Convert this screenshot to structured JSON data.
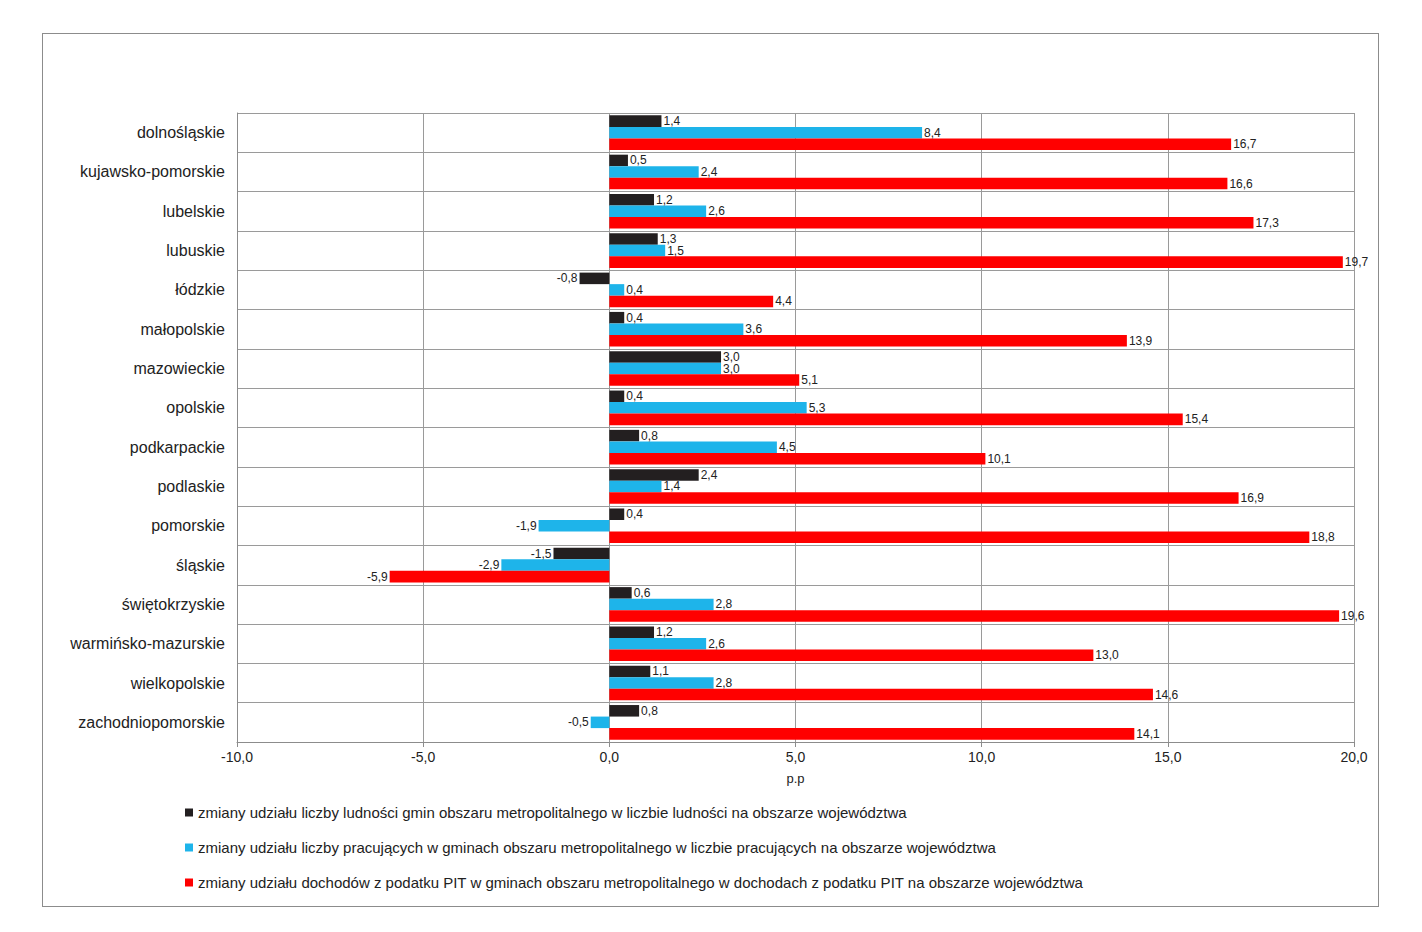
{
  "chart_data": {
    "type": "bar",
    "orientation": "horizontal",
    "x_label": "p.p",
    "categories": [
      "dolnośląskie",
      "kujawsko-pomorskie",
      "lubelskie",
      "lubuskie",
      "łódzkie",
      "małopolskie",
      "mazowieckie",
      "opolskie",
      "podkarpackie",
      "podlaskie",
      "pomorskie",
      "śląskie",
      "świętokrzyskie",
      "warmińsko-mazurskie",
      "wielkopolskie",
      "zachodniopomorskie"
    ],
    "series": [
      {
        "name": "zmiany udziału liczby ludności gmin obszaru metropolitalnego w liczbie ludności na obszarze województwa",
        "color": "#231f20",
        "values": [
          1.4,
          0.5,
          1.2,
          1.3,
          -0.8,
          0.4,
          3.0,
          0.4,
          0.8,
          2.4,
          0.4,
          -1.5,
          0.6,
          1.2,
          1.1,
          0.8
        ],
        "value_labels": [
          "1,4",
          "0,5",
          "1,2",
          "1,3",
          "-0,8",
          "0,4",
          "3,0",
          "0,4",
          "0,8",
          "2,4",
          "0,4",
          "-1,5",
          "0,6",
          "1,2",
          "1,1",
          "0,8"
        ]
      },
      {
        "name": "zmiany udziału liczby pracujących w gminach obszaru metropolitalnego w liczbie pracujących na obszarze województwa",
        "color": "#1eb4ea",
        "values": [
          8.4,
          2.4,
          2.6,
          1.5,
          0.4,
          3.6,
          3.0,
          5.3,
          4.5,
          1.4,
          -1.9,
          -2.9,
          2.8,
          2.6,
          2.8,
          -0.5
        ],
        "value_labels": [
          "8,4",
          "2,4",
          "2,6",
          "1,5",
          "0,4",
          "3,6",
          "3,0",
          "5,3",
          "4,5",
          "1,4",
          "-1,9",
          "-2,9",
          "2,8",
          "2,6",
          "2,8",
          "-0,5"
        ]
      },
      {
        "name": "zmiany udziału dochodów z podatku PIT w gminach obszaru metropolitalnego w dochodach z podatku PIT na obszarze województwa",
        "color": "#ff0000",
        "values": [
          16.7,
          16.6,
          17.3,
          19.7,
          4.4,
          13.9,
          5.1,
          15.4,
          10.1,
          16.9,
          18.8,
          -5.9,
          19.6,
          13.0,
          14.6,
          14.1
        ],
        "value_labels": [
          "16,7",
          "16,6",
          "17,3",
          "19,7",
          "4,4",
          "13,9",
          "5,1",
          "15,4",
          "10,1",
          "16,9",
          "18,8",
          "-5,9",
          "19,6",
          "13,0",
          "14,6",
          "14,1"
        ]
      }
    ],
    "xlim": [
      -10,
      20
    ],
    "xticks": [
      {
        "value": -10,
        "label": "-10,0"
      },
      {
        "value": -5,
        "label": "-5,0"
      },
      {
        "value": 0,
        "label": "0,0"
      },
      {
        "value": 5,
        "label": "5,0"
      },
      {
        "value": 10,
        "label": "10,0"
      },
      {
        "value": 15,
        "label": "15,0"
      },
      {
        "value": 20,
        "label": "20,0"
      }
    ],
    "grid": true,
    "legend": "bottom",
    "data_labels": true
  }
}
